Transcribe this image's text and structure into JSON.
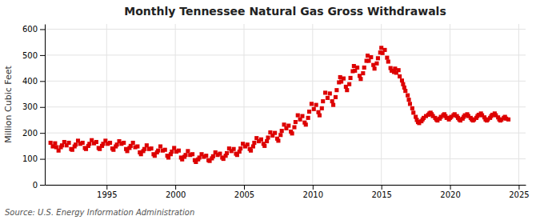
{
  "chart_data": {
    "type": "scatter",
    "title": "Monthly Tennessee Natural Gas Gross Withdrawals",
    "ylabel": "Million Cubic Feet",
    "source": "Source: U.S. Energy Information Administration",
    "xlim": [
      1990.5,
      2025.5
    ],
    "ylim": [
      0,
      620
    ],
    "xticks": [
      1995,
      2000,
      2005,
      2010,
      2015,
      2020,
      2025
    ],
    "yticks": [
      0,
      100,
      200,
      300,
      400,
      500,
      600
    ],
    "grid": true,
    "color": "#dd0000",
    "marker": "square",
    "x": [
      1990.917,
      1991.083,
      1991.25,
      1991.333,
      1991.5,
      1991.667,
      1991.75,
      1991.917,
      1992.083,
      1992.25,
      1992.417,
      1992.5,
      1992.667,
      1992.75,
      1992.917,
      1993.083,
      1993.25,
      1993.417,
      1993.5,
      1993.667,
      1993.75,
      1993.917,
      1994.083,
      1994.25,
      1994.417,
      1994.5,
      1994.667,
      1994.75,
      1994.917,
      1995.083,
      1995.25,
      1995.417,
      1995.5,
      1995.667,
      1995.75,
      1995.917,
      1996.083,
      1996.25,
      1996.417,
      1996.5,
      1996.667,
      1996.75,
      1996.917,
      1997.083,
      1997.25,
      1997.417,
      1997.5,
      1997.667,
      1997.75,
      1997.917,
      1998.083,
      1998.25,
      1998.417,
      1998.5,
      1998.667,
      1998.75,
      1998.917,
      1999.083,
      1999.25,
      1999.417,
      1999.5,
      1999.667,
      1999.75,
      1999.917,
      2000.083,
      2000.25,
      2000.417,
      2000.5,
      2000.667,
      2000.75,
      2000.917,
      2001.083,
      2001.25,
      2001.417,
      2001.5,
      2001.667,
      2001.75,
      2001.917,
      2002.083,
      2002.25,
      2002.417,
      2002.5,
      2002.667,
      2002.75,
      2002.917,
      2003.083,
      2003.25,
      2003.417,
      2003.5,
      2003.667,
      2003.75,
      2003.917,
      2004.083,
      2004.25,
      2004.417,
      2004.5,
      2004.667,
      2004.75,
      2004.917,
      2005.083,
      2005.25,
      2005.417,
      2005.5,
      2005.667,
      2005.75,
      2005.917,
      2006.083,
      2006.25,
      2006.417,
      2006.5,
      2006.667,
      2006.75,
      2006.917,
      2007.083,
      2007.25,
      2007.417,
      2007.5,
      2007.667,
      2007.75,
      2007.917,
      2008.083,
      2008.25,
      2008.417,
      2008.5,
      2008.667,
      2008.75,
      2008.917,
      2009.083,
      2009.25,
      2009.417,
      2009.5,
      2009.667,
      2009.75,
      2009.917,
      2010.083,
      2010.25,
      2010.417,
      2010.5,
      2010.667,
      2010.75,
      2010.917,
      2011.083,
      2011.25,
      2011.417,
      2011.5,
      2011.667,
      2011.75,
      2011.917,
      2012.0,
      2012.083,
      2012.25,
      2012.417,
      2012.5,
      2012.667,
      2012.75,
      2012.917,
      2013.0,
      2013.083,
      2013.25,
      2013.417,
      2013.5,
      2013.667,
      2013.75,
      2013.917,
      2014.0,
      2014.083,
      2014.25,
      2014.417,
      2014.5,
      2014.667,
      2014.75,
      2014.917,
      2015.0,
      2015.083,
      2015.25,
      2015.417,
      2015.5,
      2015.667,
      2015.75,
      2015.917,
      2016.0,
      2016.083,
      2016.25,
      2016.333,
      2016.5,
      2016.583,
      2016.667,
      2016.75,
      2016.917,
      2017.0,
      2017.083,
      2017.25,
      2017.333,
      2017.5,
      2017.583,
      2017.667,
      2017.75,
      2017.917,
      2018.0,
      2018.083,
      2018.25,
      2018.417,
      2018.5,
      2018.583,
      2018.667,
      2018.75,
      2018.917,
      2019.0,
      2019.083,
      2019.25,
      2019.333,
      2019.5,
      2019.583,
      2019.667,
      2019.75,
      2019.917,
      2020.0,
      2020.083,
      2020.25,
      2020.333,
      2020.5,
      2020.583,
      2020.667,
      2020.75,
      2020.917,
      2021.0,
      2021.083,
      2021.25,
      2021.333,
      2021.5,
      2021.583,
      2021.667,
      2021.75,
      2021.917,
      2022.0,
      2022.083,
      2022.25,
      2022.333,
      2022.5,
      2022.583,
      2022.667,
      2022.75,
      2022.917,
      2023.0,
      2023.083,
      2023.25,
      2023.333,
      2023.5,
      2023.583,
      2023.667,
      2023.75,
      2023.917,
      2024.0,
      2024.083,
      2024.25
    ],
    "values": [
      162,
      148,
      160,
      145,
      132,
      145,
      152,
      165,
      152,
      162,
      138,
      135,
      148,
      155,
      170,
      158,
      162,
      142,
      138,
      150,
      158,
      172,
      160,
      165,
      142,
      138,
      150,
      158,
      170,
      158,
      162,
      140,
      135,
      148,
      155,
      168,
      158,
      162,
      138,
      130,
      142,
      150,
      162,
      145,
      148,
      125,
      118,
      130,
      138,
      152,
      138,
      140,
      118,
      112,
      125,
      132,
      148,
      132,
      135,
      112,
      105,
      118,
      128,
      142,
      128,
      132,
      105,
      98,
      108,
      115,
      130,
      115,
      118,
      95,
      88,
      98,
      105,
      118,
      108,
      112,
      95,
      92,
      102,
      110,
      125,
      115,
      120,
      105,
      100,
      112,
      122,
      140,
      130,
      138,
      120,
      115,
      128,
      140,
      158,
      148,
      155,
      138,
      132,
      148,
      162,
      180,
      168,
      175,
      158,
      150,
      168,
      182,
      202,
      190,
      200,
      178,
      170,
      192,
      208,
      232,
      218,
      228,
      205,
      198,
      222,
      242,
      268,
      252,
      265,
      240,
      232,
      258,
      282,
      312,
      292,
      308,
      280,
      268,
      295,
      322,
      355,
      335,
      352,
      322,
      308,
      338,
      365,
      395,
      415,
      398,
      410,
      378,
      365,
      388,
      412,
      438,
      458,
      440,
      452,
      420,
      408,
      430,
      452,
      478,
      498,
      478,
      492,
      462,
      448,
      468,
      488,
      510,
      528,
      508,
      520,
      490,
      475,
      450,
      440,
      435,
      448,
      432,
      442,
      418,
      402,
      388,
      375,
      362,
      345,
      328,
      312,
      295,
      278,
      262,
      250,
      242,
      238,
      245,
      252,
      258,
      265,
      270,
      275,
      278,
      272,
      265,
      258,
      252,
      248,
      255,
      262,
      268,
      272,
      265,
      258,
      252,
      258,
      262,
      268,
      272,
      265,
      258,
      252,
      248,
      255,
      262,
      268,
      272,
      265,
      258,
      252,
      248,
      252,
      258,
      265,
      270,
      275,
      268,
      260,
      252,
      248,
      252,
      258,
      265,
      270,
      275,
      268,
      260,
      252,
      248,
      252,
      258,
      262,
      255,
      252
    ]
  }
}
